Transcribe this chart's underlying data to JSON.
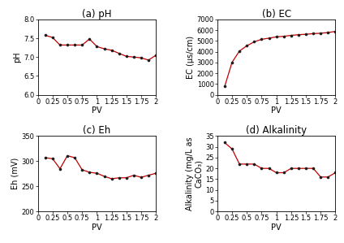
{
  "ph_pv": [
    0.125,
    0.25,
    0.375,
    0.5,
    0.625,
    0.75,
    0.875,
    1.0,
    1.125,
    1.25,
    1.375,
    1.5,
    1.625,
    1.75,
    1.875,
    2.0
  ],
  "ph_val": [
    7.58,
    7.52,
    7.32,
    7.32,
    7.32,
    7.32,
    7.48,
    7.28,
    7.22,
    7.18,
    7.1,
    7.02,
    7.0,
    6.98,
    6.92,
    7.05
  ],
  "ec_pv": [
    0.125,
    0.25,
    0.375,
    0.5,
    0.625,
    0.75,
    0.875,
    1.0,
    1.125,
    1.25,
    1.375,
    1.5,
    1.625,
    1.75,
    1.875,
    2.0
  ],
  "ec_val": [
    780,
    3020,
    4060,
    4550,
    4920,
    5150,
    5260,
    5380,
    5430,
    5520,
    5580,
    5620,
    5680,
    5720,
    5780,
    5890
  ],
  "eh_pv": [
    0.125,
    0.25,
    0.375,
    0.5,
    0.625,
    0.75,
    0.875,
    1.0,
    1.125,
    1.25,
    1.375,
    1.5,
    1.625,
    1.75,
    1.875,
    2.0
  ],
  "eh_val": [
    307,
    305,
    285,
    311,
    307,
    283,
    278,
    276,
    270,
    265,
    267,
    267,
    272,
    268,
    272,
    276
  ],
  "alk_pv": [
    0.125,
    0.25,
    0.375,
    0.5,
    0.625,
    0.75,
    0.875,
    1.0,
    1.125,
    1.25,
    1.375,
    1.5,
    1.625,
    1.75,
    1.875,
    2.0
  ],
  "alk_val": [
    32,
    29,
    22,
    22,
    22,
    20,
    20,
    18,
    18,
    20,
    20,
    20,
    20,
    16,
    16,
    18
  ],
  "line_color": "#c00000",
  "marker_color": "#1a1a1a",
  "bg_color": "#ffffff",
  "ph_ylim": [
    6.0,
    8.0
  ],
  "ph_yticks": [
    6.0,
    6.5,
    7.0,
    7.5,
    8.0
  ],
  "ec_ylim": [
    0,
    7000
  ],
  "ec_yticks": [
    0,
    1000,
    2000,
    3000,
    4000,
    5000,
    6000,
    7000
  ],
  "eh_ylim": [
    200,
    350
  ],
  "eh_yticks": [
    200,
    250,
    300,
    350
  ],
  "alk_ylim": [
    0,
    35
  ],
  "alk_yticks": [
    0,
    5,
    10,
    15,
    20,
    25,
    30,
    35
  ],
  "xlim": [
    0,
    2.0
  ],
  "xticks": [
    0,
    0.25,
    0.5,
    0.75,
    1.0,
    1.25,
    1.5,
    1.75,
    2.0
  ],
  "xticklabels": [
    "0",
    "0.25",
    "0.5",
    "0.75",
    "1",
    "1.25",
    "1.5",
    "1.75",
    "2"
  ],
  "xlabel": "PV",
  "ph_ylabel": "pH",
  "ec_ylabel": "EC (μs/cm)",
  "eh_ylabel": "Eh (mV)",
  "alk_ylabel": "Alkalinity (mg/L as\nCaCO₃)",
  "title_a": "(a) pH",
  "title_b": "(b) EC",
  "title_c": "(c) Eh",
  "title_d": "(d) Alkalinity",
  "title_fontsize": 8.5,
  "axis_label_fontsize": 7,
  "tick_fontsize": 6
}
